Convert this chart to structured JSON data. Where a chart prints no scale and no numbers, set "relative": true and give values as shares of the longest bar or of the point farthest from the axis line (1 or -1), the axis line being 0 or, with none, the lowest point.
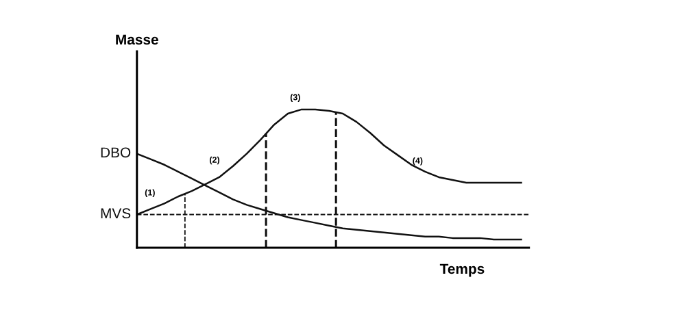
{
  "chart_data": {
    "type": "line",
    "relative": true,
    "ylabel": "Masse",
    "xlabel": "Temps",
    "categories": [
      null,
      null,
      null,
      null,
      null,
      null,
      null,
      null,
      null,
      null,
      null,
      null,
      null,
      null,
      null,
      null,
      null,
      null,
      null,
      null,
      null,
      null,
      null,
      null,
      null,
      null,
      null,
      null,
      null
    ],
    "series": [
      {
        "name": "MVS",
        "color": "#111111",
        "values": [
          0.24,
          0.28,
          0.32,
          0.37,
          0.41,
          0.46,
          0.51,
          0.59,
          0.68,
          0.78,
          0.89,
          0.97,
          1.0,
          1.0,
          0.99,
          0.97,
          0.91,
          0.83,
          0.74,
          0.67,
          0.6,
          0.55,
          0.51,
          0.49,
          0.47,
          0.47,
          0.47,
          0.47,
          0.47
        ]
      },
      {
        "name": "DBO",
        "color": "#111111",
        "values": [
          0.68,
          0.64,
          0.6,
          0.55,
          0.5,
          0.45,
          0.4,
          0.35,
          0.31,
          0.28,
          0.25,
          0.22,
          0.2,
          0.18,
          0.16,
          0.14,
          0.13,
          0.12,
          0.11,
          0.1,
          0.09,
          0.08,
          0.08,
          0.07,
          0.07,
          0.07,
          0.06,
          0.06,
          0.06
        ]
      }
    ],
    "ref_lines": [
      {
        "axis": "y",
        "value": 0.24,
        "color": "#111111",
        "line_style": "dashed"
      }
    ],
    "annotations": [
      "(1)",
      "(2)",
      "(3)",
      "(4)"
    ],
    "legend": false,
    "marker": "none",
    "line_style": "solid"
  }
}
